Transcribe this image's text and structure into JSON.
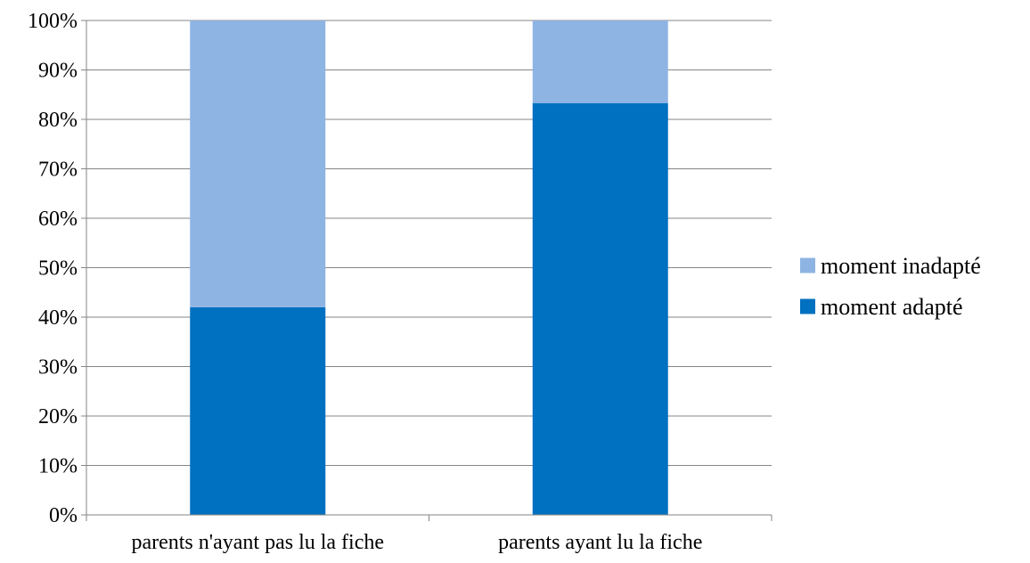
{
  "chart_data": {
    "type": "bar",
    "stacked": true,
    "percent": true,
    "categories": [
      "parents n'ayant pas lu la fiche",
      "parents ayant lu la fiche"
    ],
    "series": [
      {
        "name": "moment adapté",
        "values": [
          42,
          83.3
        ],
        "color": "#0070C0"
      },
      {
        "name": "moment inadapté",
        "values": [
          58,
          16.7
        ],
        "color": "#8EB4E3"
      }
    ],
    "y_ticks": [
      "0%",
      "10%",
      "20%",
      "30%",
      "40%",
      "50%",
      "60%",
      "70%",
      "80%",
      "90%",
      "100%"
    ],
    "ylim": [
      0,
      100
    ],
    "grid": true,
    "legend_position": "right",
    "legend_order": [
      "moment inadapté",
      "moment adapté"
    ],
    "title": "",
    "xlabel": "",
    "ylabel": ""
  }
}
